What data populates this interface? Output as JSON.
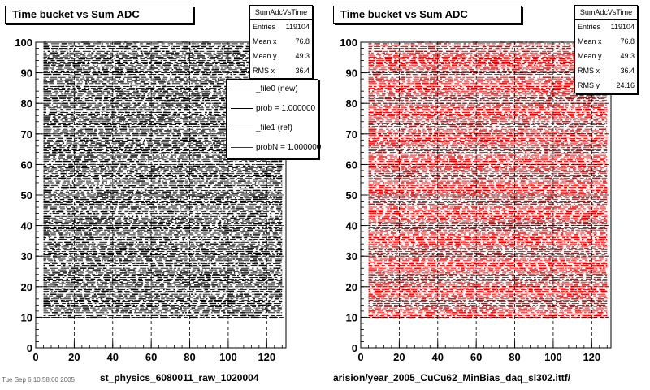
{
  "chart_data": [
    {
      "type": "scatter",
      "title": "Time bucket vs Sum ADC",
      "xlim": [
        0,
        130
      ],
      "ylim": [
        0,
        100
      ],
      "xticks": [
        0,
        20,
        40,
        60,
        80,
        100,
        120
      ],
      "yticks": [
        0,
        10,
        20,
        30,
        40,
        50,
        60,
        70,
        80,
        90,
        100
      ],
      "grid": true,
      "point_color": "#000000",
      "x_range_of_points": [
        4,
        128
      ],
      "y_range_of_points": [
        10,
        100
      ],
      "stats": {
        "name": "SumAdcVsTime",
        "rows": [
          {
            "label": "Entries",
            "value": "119104"
          },
          {
            "label": "Mean x",
            "value": "76.8"
          },
          {
            "label": "Mean y",
            "value": "49.3"
          },
          {
            "label": "RMS x",
            "value": "36.4"
          }
        ]
      },
      "legend": {
        "placement": "top-right",
        "entries": [
          {
            "label": "_file0 (new)",
            "color": "#000000"
          },
          {
            "label": "prob = 1.000000",
            "color": "#000000"
          },
          {
            "label": "_file1 (ref)",
            "color": "#cc0000"
          },
          {
            "label": "probN = 1.000000",
            "color": "#cc0000"
          }
        ]
      },
      "file_label": "st_physics_6080011_raw_1020004"
    },
    {
      "type": "scatter",
      "title": "Time bucket vs Sum ADC",
      "xlim": [
        0,
        130
      ],
      "ylim": [
        0,
        100
      ],
      "xticks": [
        0,
        20,
        40,
        60,
        80,
        100,
        120
      ],
      "yticks": [
        0,
        10,
        20,
        30,
        40,
        50,
        60,
        70,
        80,
        90,
        100
      ],
      "grid": true,
      "point_color": "#dd0000",
      "x_range_of_points": [
        4,
        128
      ],
      "y_range_of_points": [
        10,
        100
      ],
      "stats": {
        "name": "SumAdcVsTime",
        "rows": [
          {
            "label": "Entries",
            "value": "119104"
          },
          {
            "label": "Mean x",
            "value": "76.8"
          },
          {
            "label": "Mean y",
            "value": "49.3"
          },
          {
            "label": "RMS x",
            "value": "36.4"
          },
          {
            "label": "RMS y",
            "value": "24.16"
          }
        ]
      },
      "file_label": "arision/year_2005_CuCu62_MinBias_daq_sl302.ittf/"
    }
  ],
  "corner_text": "Tue Sep 6 10:58:00 2005"
}
